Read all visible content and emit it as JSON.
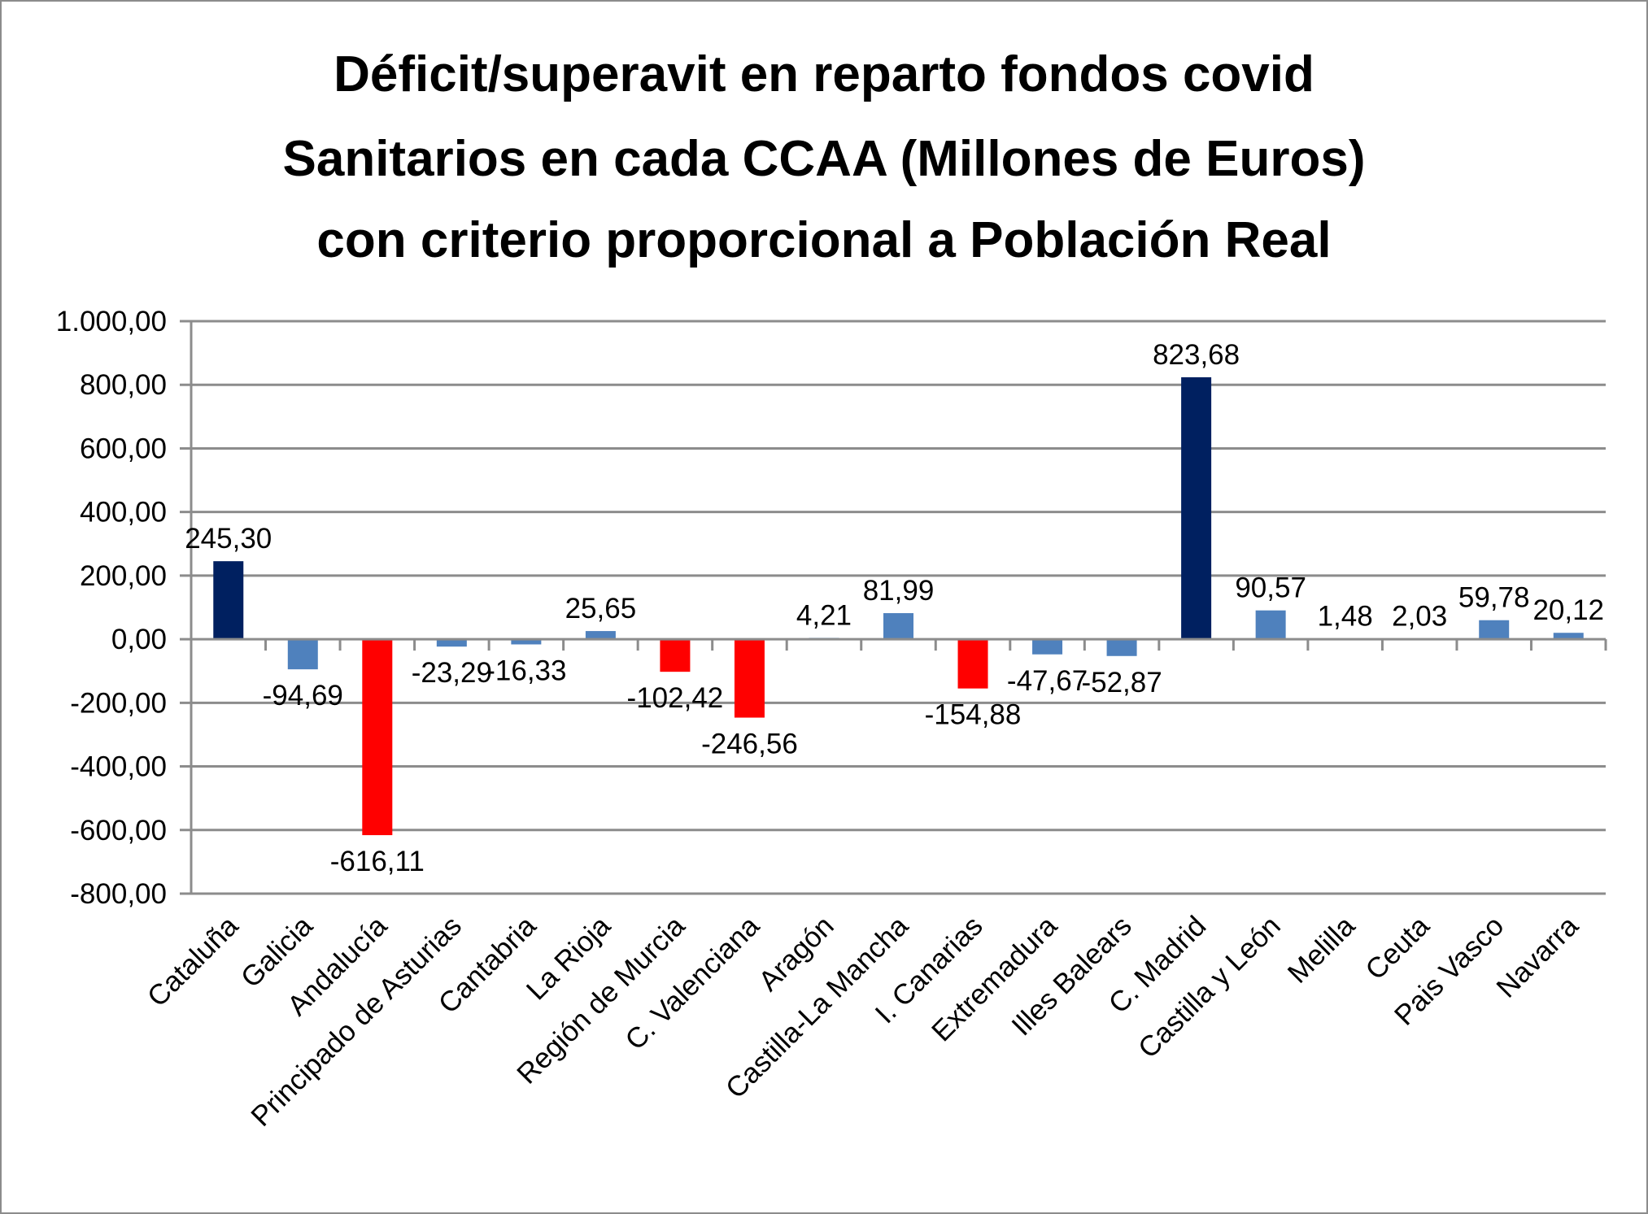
{
  "chart_data": {
    "type": "bar",
    "title": "Déficit/superavit en reparto fondos covid Sanitarios en cada CCAA (Millones de Euros) con criterio proporcional a Población Real",
    "title_lines": [
      "Déficit/superavit en reparto fondos covid",
      "Sanitarios en cada CCAA (Millones de Euros)",
      "con criterio proporcional a Población Real"
    ],
    "xlabel": "",
    "ylabel": "",
    "ylim": [
      -800,
      1000
    ],
    "y_ticks": [
      1000,
      800,
      600,
      400,
      200,
      0,
      -200,
      -400,
      -600,
      -800
    ],
    "y_tick_labels": [
      "1.000,00",
      "800,00",
      "600,00",
      "400,00",
      "200,00",
      "0,00",
      "-200,00",
      "-400,00",
      "-600,00",
      "-800,00"
    ],
    "grid": true,
    "legend": "none",
    "categories": [
      "Cataluña",
      "Galicia",
      "Andalucía",
      "Principado de Asturias",
      "Cantabria",
      "La Rioja",
      "Región de Murcia",
      "C. Valenciana",
      "Aragón",
      "Castilla-La Mancha",
      "I. Canarias",
      "Extremadura",
      "Illes Balears",
      "C. Madrid",
      "Castilla y León",
      "Melilla",
      "Ceuta",
      "Pais Vasco",
      "Navarra"
    ],
    "values": [
      245.3,
      -94.69,
      -616.11,
      -23.29,
      -16.33,
      25.65,
      -102.42,
      -246.56,
      4.21,
      81.99,
      -154.88,
      -47.67,
      -52.87,
      823.68,
      90.57,
      1.48,
      2.03,
      59.78,
      20.12
    ],
    "data_labels": [
      "245,30",
      "-94,69",
      "-616,11",
      "-23,29",
      "-16,33",
      "25,65",
      "-102,42",
      "-246,56",
      "4,21",
      "81,99",
      "-154,88",
      "-47,67",
      "-52,87",
      "823,68",
      "90,57",
      "1,48",
      "2,03",
      "59,78",
      "20,12"
    ],
    "bar_colors": [
      "#002060",
      "#4F81BD",
      "#FF0000",
      "#4F81BD",
      "#4F81BD",
      "#4F81BD",
      "#FF0000",
      "#FF0000",
      "#4F81BD",
      "#4F81BD",
      "#FF0000",
      "#4F81BD",
      "#4F81BD",
      "#002060",
      "#4F81BD",
      "#4F81BD",
      "#4F81BD",
      "#4F81BD",
      "#4F81BD"
    ],
    "palette": {
      "highlight_surplus": "#002060",
      "deficit_large": "#FF0000",
      "default": "#4F81BD",
      "gridline": "#8C8C8C"
    }
  }
}
